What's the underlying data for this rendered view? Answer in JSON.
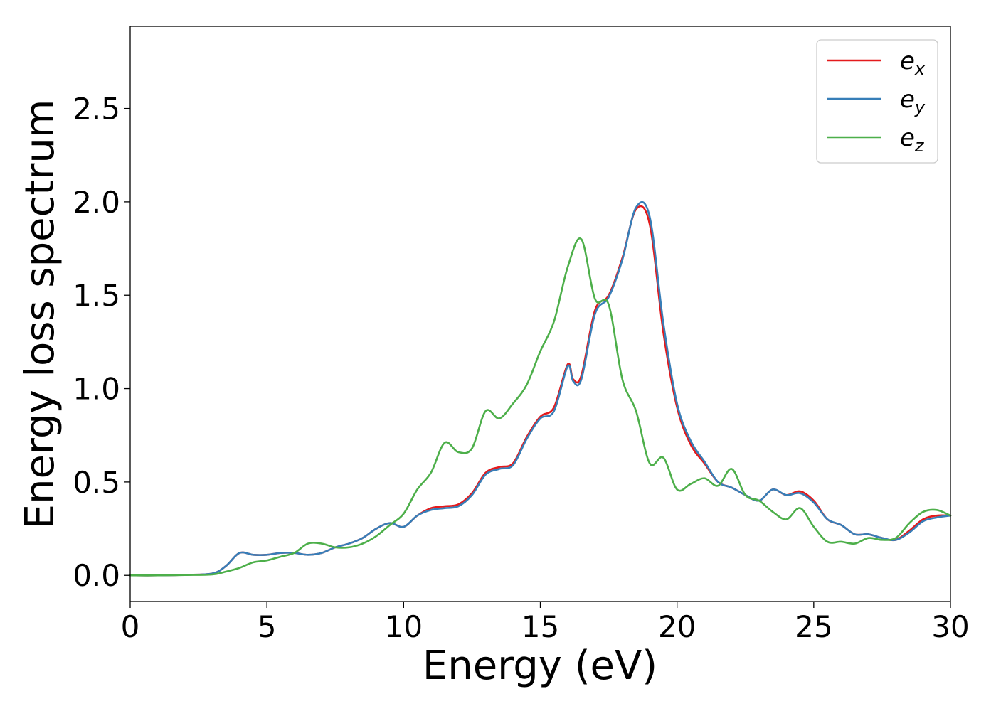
{
  "chart_data": {
    "type": "line",
    "title": "",
    "xlabel": "Energy (eV)",
    "ylabel": "Energy loss spectrum",
    "xlim": [
      0,
      30
    ],
    "ylim": [
      -0.14,
      2.94
    ],
    "x_ticks": [
      0,
      5,
      10,
      15,
      20,
      25,
      30
    ],
    "x_tick_labels": [
      "0",
      "5",
      "10",
      "15",
      "20",
      "25",
      "30"
    ],
    "y_ticks": [
      0.0,
      0.5,
      1.0,
      1.5,
      2.0,
      2.5
    ],
    "y_tick_labels": [
      "0.0",
      "0.5",
      "1.0",
      "1.5",
      "2.0",
      "2.5"
    ],
    "grid": false,
    "legend_position": "top-right",
    "series": [
      {
        "name": "e_x",
        "legend_base": "e",
        "legend_sub": "x",
        "color": "#e41a1c",
        "x": [
          0,
          1,
          2,
          3,
          3.5,
          4,
          4.5,
          5,
          5.5,
          6,
          6.5,
          7,
          7.5,
          8,
          8.5,
          9,
          9.5,
          10,
          10.5,
          11,
          11.5,
          12,
          12.5,
          13,
          13.5,
          14,
          14.5,
          15,
          15.5,
          16,
          16.2,
          16.5,
          17,
          17.5,
          18,
          18.5,
          19,
          19.5,
          20,
          20.5,
          21,
          21.5,
          22,
          22.5,
          23,
          23.5,
          24,
          24.5,
          25,
          25.5,
          26,
          26.5,
          27,
          27.5,
          28,
          28.5,
          29,
          29.5,
          30
        ],
        "y": [
          0,
          0,
          0.003,
          0.01,
          0.05,
          0.12,
          0.11,
          0.11,
          0.12,
          0.12,
          0.11,
          0.12,
          0.15,
          0.17,
          0.2,
          0.25,
          0.28,
          0.26,
          0.32,
          0.36,
          0.37,
          0.38,
          0.44,
          0.55,
          0.58,
          0.6,
          0.74,
          0.85,
          0.9,
          1.13,
          1.05,
          1.07,
          1.42,
          1.5,
          1.7,
          1.96,
          1.88,
          1.3,
          0.9,
          0.7,
          0.6,
          0.5,
          0.47,
          0.43,
          0.4,
          0.46,
          0.43,
          0.45,
          0.4,
          0.3,
          0.27,
          0.22,
          0.22,
          0.2,
          0.19,
          0.24,
          0.3,
          0.32,
          0.32
        ]
      },
      {
        "name": "e_y",
        "legend_base": "e",
        "legend_sub": "y",
        "color": "#377eb8",
        "x": [
          0,
          1,
          2,
          3,
          3.5,
          4,
          4.5,
          5,
          5.5,
          6,
          6.5,
          7,
          7.5,
          8,
          8.5,
          9,
          9.5,
          10,
          10.5,
          11,
          11.5,
          12,
          12.5,
          13,
          13.5,
          14,
          14.5,
          15,
          15.5,
          16,
          16.2,
          16.5,
          17,
          17.5,
          18,
          18.5,
          19,
          19.5,
          20,
          20.5,
          21,
          21.5,
          22,
          22.5,
          23,
          23.5,
          24,
          24.5,
          25,
          25.5,
          26,
          26.5,
          27,
          27.5,
          28,
          28.5,
          29,
          29.5,
          30
        ],
        "y": [
          0,
          0,
          0.003,
          0.01,
          0.05,
          0.12,
          0.11,
          0.11,
          0.12,
          0.12,
          0.11,
          0.12,
          0.15,
          0.17,
          0.2,
          0.25,
          0.28,
          0.26,
          0.32,
          0.35,
          0.36,
          0.37,
          0.43,
          0.54,
          0.57,
          0.59,
          0.73,
          0.84,
          0.88,
          1.12,
          1.04,
          1.05,
          1.4,
          1.49,
          1.69,
          1.97,
          1.92,
          1.35,
          0.92,
          0.72,
          0.61,
          0.5,
          0.47,
          0.43,
          0.4,
          0.46,
          0.43,
          0.44,
          0.39,
          0.3,
          0.27,
          0.22,
          0.22,
          0.2,
          0.19,
          0.23,
          0.29,
          0.31,
          0.32
        ]
      },
      {
        "name": "e_z",
        "legend_base": "e",
        "legend_sub": "z",
        "color": "#4daf4a",
        "x": [
          0,
          1,
          2,
          3,
          3.5,
          4,
          4.5,
          5,
          5.5,
          6,
          6.5,
          7,
          7.5,
          8,
          8.5,
          9,
          9.5,
          10,
          10.5,
          11,
          11.5,
          12,
          12.5,
          13,
          13.5,
          14,
          14.5,
          15,
          15.5,
          16,
          16.5,
          17,
          17.5,
          18,
          18.5,
          19,
          19.5,
          20,
          20.5,
          21,
          21.5,
          22,
          22.5,
          23,
          23.5,
          24,
          24.5,
          25,
          25.5,
          26,
          26.5,
          27,
          27.5,
          28,
          28.5,
          29,
          29.5,
          30
        ],
        "y": [
          0,
          0,
          0.002,
          0.005,
          0.02,
          0.04,
          0.07,
          0.08,
          0.1,
          0.12,
          0.17,
          0.17,
          0.15,
          0.15,
          0.17,
          0.21,
          0.27,
          0.33,
          0.46,
          0.55,
          0.71,
          0.66,
          0.68,
          0.88,
          0.84,
          0.92,
          1.02,
          1.2,
          1.36,
          1.65,
          1.8,
          1.48,
          1.45,
          1.05,
          0.88,
          0.6,
          0.63,
          0.46,
          0.49,
          0.52,
          0.48,
          0.57,
          0.43,
          0.4,
          0.34,
          0.3,
          0.36,
          0.26,
          0.18,
          0.18,
          0.17,
          0.2,
          0.19,
          0.2,
          0.28,
          0.34,
          0.35,
          0.32
        ]
      }
    ]
  }
}
